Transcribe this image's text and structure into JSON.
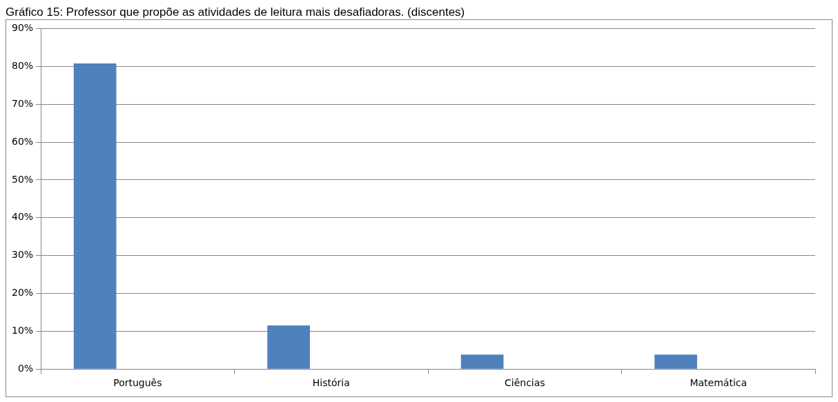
{
  "chart_data": {
    "type": "bar",
    "title": "Gráfico 15: Professor que propõe as atividades de leitura mais desafiadoras. (discentes)",
    "categories": [
      "Português",
      "História",
      "Ciências",
      "Matemática"
    ],
    "values": [
      80.8,
      11.5,
      3.8,
      3.8
    ],
    "color": "#4f81bd",
    "ylim": [
      0,
      90
    ],
    "yticks": [
      {
        "value": 0,
        "label": "0%"
      },
      {
        "value": 10,
        "label": "10%"
      },
      {
        "value": 20,
        "label": "20%"
      },
      {
        "value": 30,
        "label": "30%"
      },
      {
        "value": 40,
        "label": "40%"
      },
      {
        "value": 50,
        "label": "50%"
      },
      {
        "value": 60,
        "label": "60%"
      },
      {
        "value": 70,
        "label": "70%"
      },
      {
        "value": 80,
        "label": "80%"
      },
      {
        "value": 90,
        "label": "90%"
      }
    ],
    "grid": "y"
  }
}
